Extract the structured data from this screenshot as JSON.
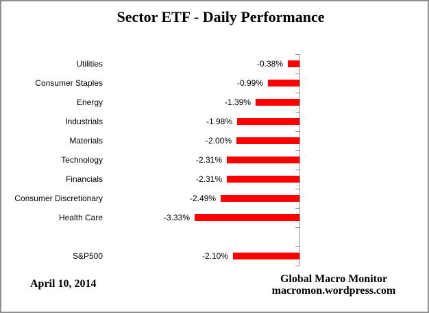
{
  "window": {
    "background": "#ffffff",
    "border_color": "#8f8f8f"
  },
  "chart_data": {
    "type": "bar",
    "orientation": "horizontal",
    "title": "Sector ETF - Daily Performance",
    "categories": [
      "Utilities",
      "Consumer Staples",
      "Energy",
      "Industrials",
      "Materials",
      "Technology",
      "Financials",
      "Consumer Discretionary",
      "Health Care",
      "",
      "S&P500"
    ],
    "values": [
      -0.38,
      -0.99,
      -1.39,
      -1.98,
      -2.0,
      -2.31,
      -2.31,
      -2.49,
      -3.33,
      null,
      -2.1
    ],
    "data_labels": [
      "-0.38%",
      "-0.99%",
      "-1.39%",
      "-1.98%",
      "-2.00%",
      "-2.31%",
      "-2.31%",
      "-2.49%",
      "-3.33%",
      "",
      "-2.10%"
    ],
    "xlabel": "",
    "ylabel": "",
    "bar_color": "#ff0000",
    "axis_color": "#8c8c8c",
    "grid": false,
    "legend": "none",
    "value_axis_labels_visible": false,
    "data_label_position": "outside-end-left"
  },
  "footer": {
    "date": "April 10, 2014",
    "source_line1": "Global Macro Monitor",
    "source_line2": "macromon.wordpress.com"
  }
}
